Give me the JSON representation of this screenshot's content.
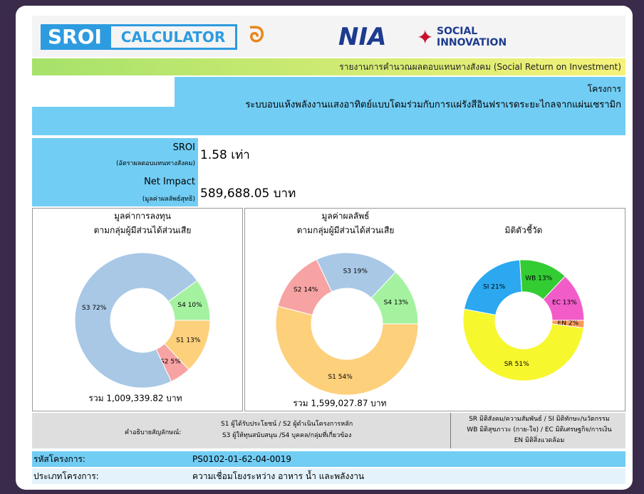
{
  "header": {
    "logo_sroi": "SROI",
    "logo_calculator": "CALCULATOR",
    "logo_nia": "NIA",
    "logo_social": "SOCIAL",
    "logo_innovation": "INNOVATION"
  },
  "report_title": "รายงานการคำนวณผลตอบแทนทางสังคม (Social Return on Investment)",
  "project_label": "โครงการ",
  "project_name": "ระบบอบแห้งพลังงานแสงอาทิตย์แบบโดมร่วมกับการแผ่รังสีอินฟราเรดระยะไกลจากแผ่นเซรามิก",
  "sroi": {
    "label": "SROI",
    "sublabel": "(อัตราผลตอบแทนทางสังคม)",
    "value": "1.58 เท่า"
  },
  "net_impact": {
    "label": "Net Impact",
    "sublabel": "(มูลค่าผลลัพธ์สุทธิ)",
    "value": "589,688.05 บาท"
  },
  "chart_data": [
    {
      "type": "donut",
      "title": "มูลค่าการลงทุน",
      "subtitle": "ตามกลุ่มผู้มีส่วนได้ส่วนเสีย",
      "categories": [
        "S1",
        "S2",
        "S3",
        "S4"
      ],
      "values": [
        13,
        5,
        72,
        10
      ],
      "value_labels": [
        "S1 13%",
        "S2 5%",
        "S3 72%",
        "S4 10%"
      ],
      "colors": [
        "#fdd07c",
        "#f7a3a3",
        "#a8c8e6",
        "#a4f2a0"
      ],
      "total": "รวม 1,009,339.82 บาท"
    },
    {
      "type": "donut",
      "title": "มูลค่าผลลัพธ์",
      "subtitle": "ตามกลุ่มผู้มีส่วนได้ส่วนเสีย",
      "categories": [
        "S1",
        "S2",
        "S3",
        "S4"
      ],
      "values": [
        54,
        14,
        19,
        13
      ],
      "value_labels": [
        "S1 54%",
        "S2 14%",
        "S3 19%",
        "S4 13%"
      ],
      "colors": [
        "#fdd07c",
        "#f7a3a3",
        "#a8c8e6",
        "#a4f2a0"
      ],
      "total": "รวม 1,599,027.87 บาท"
    },
    {
      "type": "donut",
      "title": "มิติตัวชี้วัด",
      "categories": [
        "EN",
        "SR",
        "SI",
        "WB",
        "EC"
      ],
      "values": [
        2,
        51,
        21,
        13,
        13
      ],
      "value_labels": [
        "EN 2%",
        "SR 51%",
        "SI 21%",
        "WB 13%",
        "EC 13%"
      ],
      "colors": [
        "#f79a5a",
        "#f7f72e",
        "#2ba8f0",
        "#33cc33",
        "#f25cc9"
      ]
    }
  ],
  "legend_left": {
    "label": "คำอธิบายสัญลักษณ์:",
    "lines": [
      "S1 ผู้ได้รับประโยชน์ / S2 ผู้ดำเนินโครงการหลัก",
      "S3 ผู้ให้ทุนสนับสนุน /S4 บุคคล/กลุ่มที่เกี่ยวข้อง"
    ]
  },
  "legend_right": {
    "lines": [
      "SR มิติสังคม/ความสัมพันธ์ / SI มิติทักษะ/นวัตกรรม",
      "WB มิติสุขภาวะ (กาย-ใจ) / EC มิติเศรษฐกิจ/การเงิน",
      "EN มิติสิ่งแวดล้อม"
    ]
  },
  "project_code": {
    "label": "รหัสโครงการ:",
    "value": "PS0102-01-62-04-0019"
  },
  "project_type": {
    "label": "ประเภทโครงการ:",
    "value": "ความเชื่อมโยงระหว่าง อาหาร น้ำ และพลังงาน"
  }
}
